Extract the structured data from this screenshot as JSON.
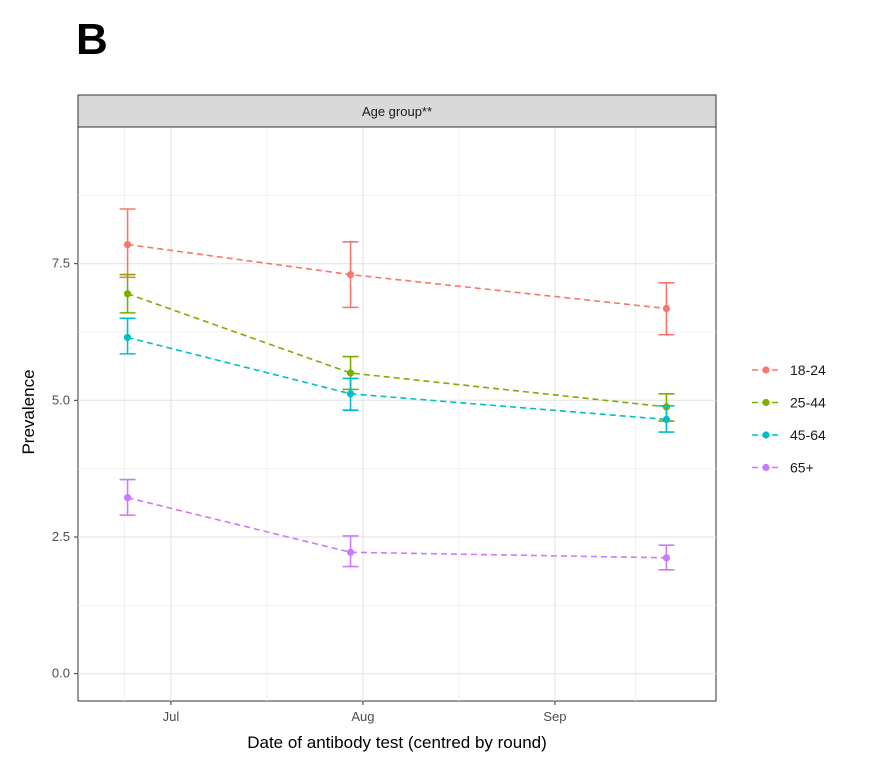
{
  "panel_label": "B",
  "chart_data": {
    "type": "line",
    "facet_title": "Age group**",
    "xlabel": "Date of antibody test (centred by round)",
    "ylabel": "Prevalence",
    "x_ticks": [
      "Jul",
      "Aug",
      "Sep"
    ],
    "y_ticks": [
      "0.0",
      "2.5",
      "5.0",
      "7.5"
    ],
    "ylim": [
      -0.5,
      10.0
    ],
    "grid": true,
    "legend_position": "right",
    "line_style": "dashed",
    "x": [
      "2020-06-24",
      "2020-07-30",
      "2020-09-19"
    ],
    "series": [
      {
        "name": "18-24",
        "color": "#F8766D",
        "values": [
          7.85,
          7.3,
          6.68
        ],
        "lower": [
          7.25,
          6.7,
          6.2
        ],
        "upper": [
          8.5,
          7.9,
          7.15
        ]
      },
      {
        "name": "25-44",
        "color": "#7CAE00",
        "values": [
          6.95,
          5.5,
          4.88
        ],
        "lower": [
          6.6,
          5.2,
          4.62
        ],
        "upper": [
          7.3,
          5.8,
          5.12
        ]
      },
      {
        "name": "45-64",
        "color": "#00BFC4",
        "values": [
          6.15,
          5.12,
          4.65
        ],
        "lower": [
          5.85,
          4.82,
          4.42
        ],
        "upper": [
          6.5,
          5.4,
          4.9
        ]
      },
      {
        "name": "65+",
        "color": "#C77CFF",
        "values": [
          3.22,
          2.22,
          2.12
        ],
        "lower": [
          2.9,
          1.96,
          1.9
        ],
        "upper": [
          3.55,
          2.52,
          2.35
        ]
      }
    ]
  }
}
